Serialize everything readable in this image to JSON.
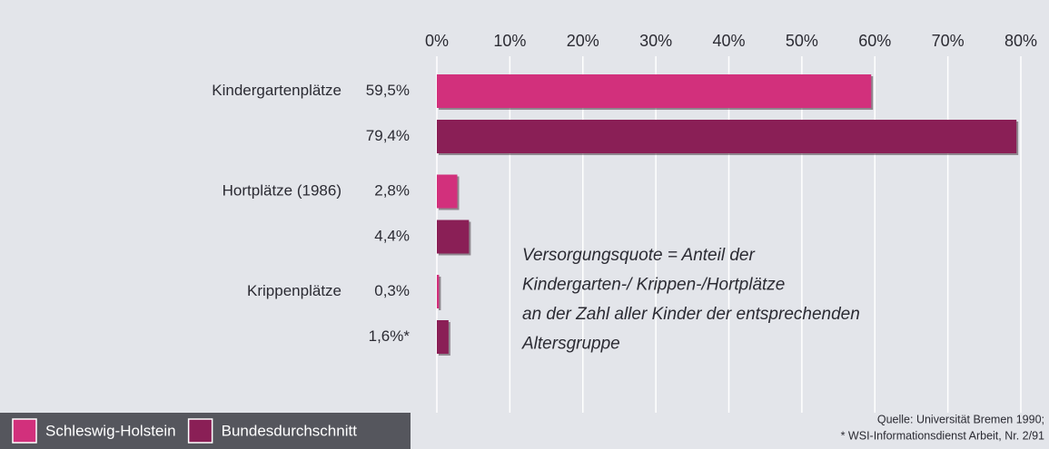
{
  "chart_data": {
    "type": "bar",
    "orientation": "horizontal",
    "categories": [
      "Kindergartenplätze",
      "Hortplätze (1986)",
      "Krippenplätze"
    ],
    "series": [
      {
        "name": "Schleswig-Holstein",
        "color": "#d2307c",
        "values": [
          59.5,
          2.8,
          0.3
        ],
        "value_labels": [
          "59,5%",
          "2,8%",
          "0,3%"
        ]
      },
      {
        "name": "Bundesdurchschnitt",
        "color": "#8a1f56",
        "values": [
          79.4,
          4.4,
          1.6
        ],
        "value_labels": [
          "79,4%",
          "4,4%",
          "1,6%*"
        ]
      }
    ],
    "xlim": [
      0,
      80
    ],
    "xticks": [
      {
        "value": 0,
        "label": "0%"
      },
      {
        "value": 10,
        "label": "10%"
      },
      {
        "value": 20,
        "label": "20%"
      },
      {
        "value": 30,
        "label": "30%"
      },
      {
        "value": 40,
        "label": "40%"
      },
      {
        "value": 50,
        "label": "50%"
      },
      {
        "value": 60,
        "label": "60%"
      },
      {
        "value": 70,
        "label": "70%"
      },
      {
        "value": 80,
        "label": "80%"
      }
    ],
    "grid": true,
    "legend": "bottom-left",
    "annotation": [
      "Versorgungsquote = Anteil der",
      "Kindergarten-/ Krippen-/Hortplätze",
      "an der Zahl aller Kinder der entsprechenden",
      "Altersgruppe"
    ],
    "source": [
      "Quelle: Universität Bremen 1990;",
      "* WSI-Informationsdienst Arbeit, Nr. 2/91"
    ]
  }
}
